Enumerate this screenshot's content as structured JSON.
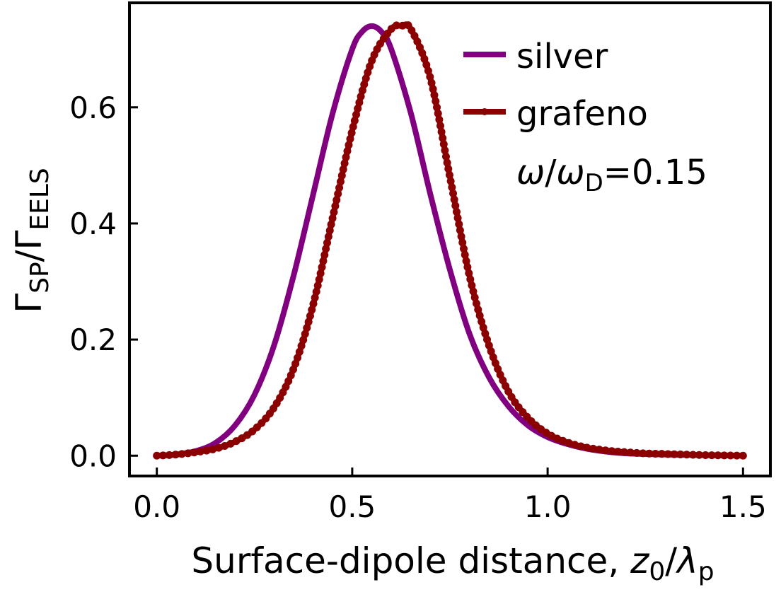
{
  "chart_data": {
    "type": "line",
    "title": "",
    "xlabel": "Surface-dipole distance, z₀/λₚ",
    "xlabel_parts": {
      "main": "Surface-dipole distance, ",
      "z": "z",
      "z_sub": "0",
      "slash": "/",
      "lambda": "λ",
      "lambda_sub": "p"
    },
    "ylabel_parts": {
      "g1": "Γ",
      "sub1": "SP",
      "slash": "/",
      "g2": "Γ",
      "sub2": "EELS"
    },
    "xlim": [
      -0.07,
      1.57
    ],
    "ylim": [
      -0.035,
      0.78
    ],
    "xticks": [
      0.0,
      0.5,
      1.0,
      1.5
    ],
    "xtick_labels": [
      "0.0",
      "0.5",
      "1.0",
      "1.5"
    ],
    "yticks": [
      0.0,
      0.2,
      0.4,
      0.6
    ],
    "ytick_labels": [
      "0.0",
      "0.2",
      "0.4",
      "0.6"
    ],
    "grid": false,
    "legend_position": "top-right",
    "annotation": {
      "omega": "ω",
      "slash": "/",
      "omega2": "ω",
      "sub": "D",
      "rest": "=0.15"
    },
    "series": [
      {
        "name": "silver",
        "color": "#800080",
        "marker": "none",
        "x": [
          0.0,
          0.05,
          0.1,
          0.15,
          0.2,
          0.25,
          0.3,
          0.35,
          0.4,
          0.45,
          0.5,
          0.525,
          0.55,
          0.575,
          0.6,
          0.65,
          0.7,
          0.75,
          0.8,
          0.85,
          0.9,
          0.95,
          1.0,
          1.05,
          1.1,
          1.15,
          1.2,
          1.3,
          1.4,
          1.5
        ],
        "y": [
          0.0,
          0.002,
          0.008,
          0.022,
          0.052,
          0.105,
          0.19,
          0.31,
          0.45,
          0.59,
          0.7,
          0.73,
          0.74,
          0.73,
          0.7,
          0.59,
          0.45,
          0.32,
          0.21,
          0.135,
          0.085,
          0.052,
          0.032,
          0.02,
          0.012,
          0.007,
          0.004,
          0.002,
          0.001,
          0.0
        ]
      },
      {
        "name": "grafeno",
        "color": "#8b0000",
        "marker": "dot",
        "x": [
          0.0,
          0.05,
          0.1,
          0.15,
          0.2,
          0.25,
          0.3,
          0.35,
          0.4,
          0.45,
          0.5,
          0.55,
          0.6,
          0.625,
          0.65,
          0.7,
          0.75,
          0.8,
          0.85,
          0.9,
          0.95,
          1.0,
          1.05,
          1.1,
          1.15,
          1.2,
          1.25,
          1.3,
          1.35,
          1.4,
          1.45,
          1.5
        ],
        "y": [
          0.0,
          0.002,
          0.006,
          0.012,
          0.024,
          0.045,
          0.083,
          0.15,
          0.26,
          0.41,
          0.56,
          0.68,
          0.735,
          0.74,
          0.735,
          0.65,
          0.48,
          0.31,
          0.19,
          0.11,
          0.065,
          0.038,
          0.023,
          0.014,
          0.009,
          0.006,
          0.004,
          0.003,
          0.002,
          0.001,
          0.0005,
          0.0
        ]
      }
    ]
  }
}
